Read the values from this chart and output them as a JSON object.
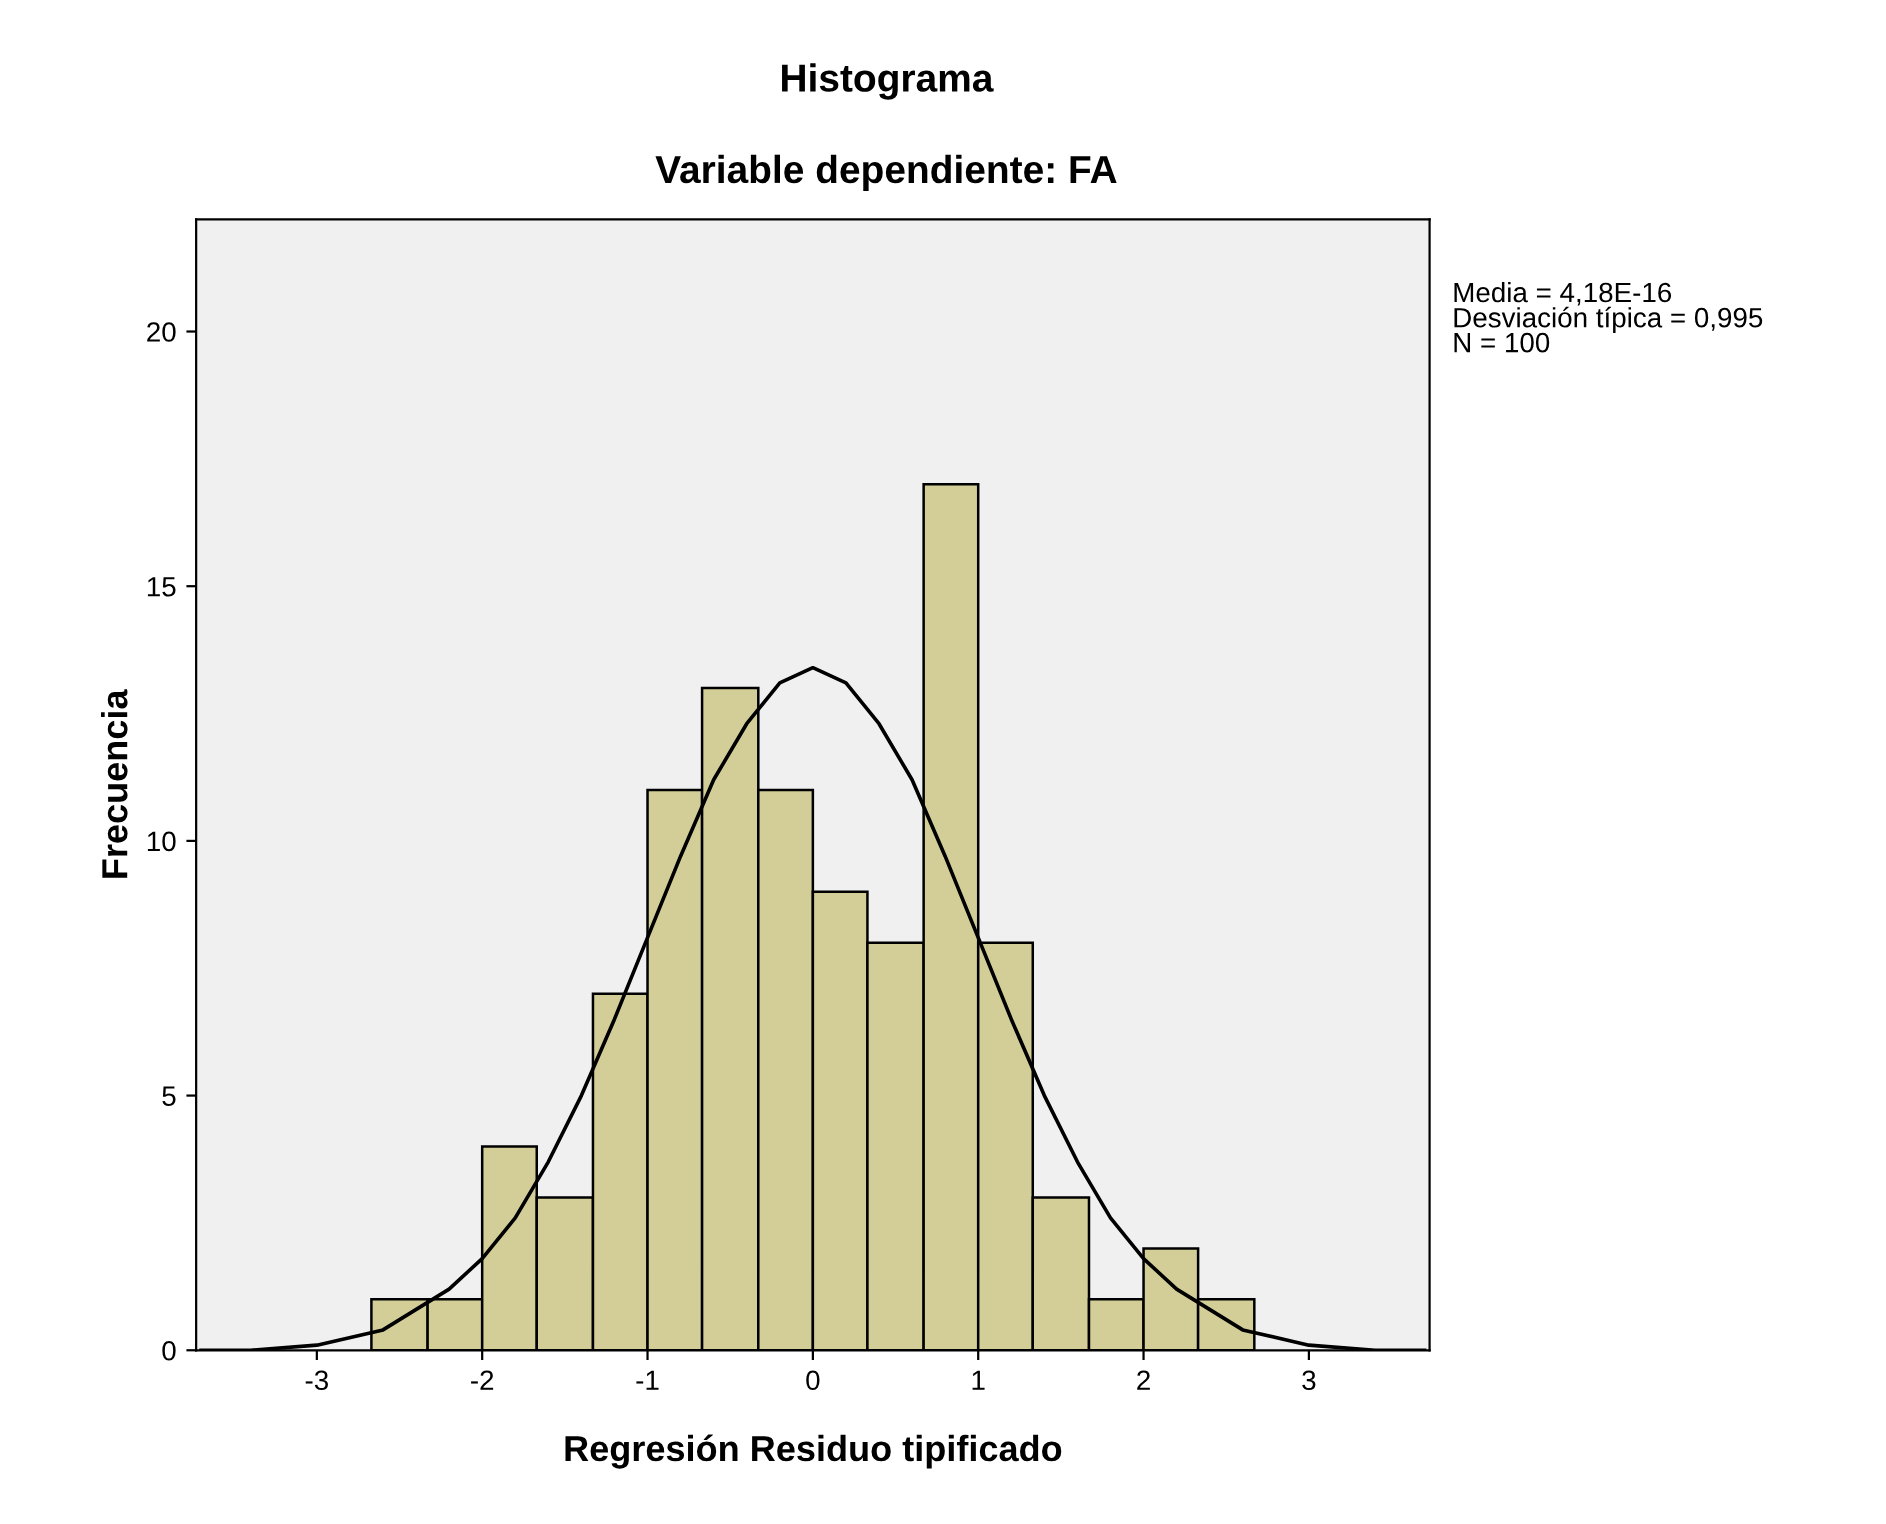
{
  "chart_data": {
    "type": "histogram",
    "title": "Histograma",
    "subtitle": "Variable dependiente: FA",
    "xlabel": "Regresión Residuo tipificado",
    "ylabel": "Frecuencia",
    "bins": [
      -2.67,
      -2.33,
      -2,
      -1.67,
      -1.33,
      -1,
      -0.67,
      -0.33,
      0,
      0.33,
      0.67,
      1,
      1.33,
      1.67,
      2,
      2.33,
      2.67
    ],
    "values": [
      1,
      1,
      4,
      3,
      7,
      11,
      13,
      11,
      9,
      8,
      17,
      8,
      3,
      1,
      2,
      1
    ],
    "color": "#d3ce98",
    "series": [
      {
        "type": "line",
        "color": "#000000",
        "x": [
          -3.7,
          -3.4,
          -3,
          -2.6,
          -2.2,
          -2,
          -1.8,
          -1.6,
          -1.4,
          -1.2,
          -1,
          -0.8,
          -0.6,
          -0.4,
          -0.2,
          0,
          0.2,
          0.4,
          0.6,
          0.8,
          1,
          1.2,
          1.4,
          1.6,
          1.8,
          2,
          2.2,
          2.6,
          3,
          3.4,
          3.7
        ],
        "values": [
          0,
          0,
          0.1,
          0.4,
          1.2,
          1.8,
          2.6,
          3.7,
          5,
          6.5,
          8.1,
          9.7,
          11.2,
          12.3,
          13.1,
          13.4,
          13.1,
          12.3,
          11.2,
          9.7,
          8.1,
          6.5,
          5,
          3.7,
          2.6,
          1.8,
          1.2,
          0.4,
          0.1,
          0,
          0
        ]
      }
    ],
    "xlim": [
      -3.73,
      3.73
    ],
    "ylim": [
      0,
      22.2
    ],
    "xticks": [
      {
        "value": -3,
        "label": "-3"
      },
      {
        "value": -2,
        "label": "-2"
      },
      {
        "value": -1,
        "label": "-1"
      },
      0,
      1,
      2,
      3
    ],
    "yticks": [
      0,
      5,
      10,
      15,
      20
    ],
    "grid": false,
    "legend": false,
    "annotations": [
      "Media = 4,18E-16\nDesviación típica = 0,995\nN = 100"
    ]
  }
}
